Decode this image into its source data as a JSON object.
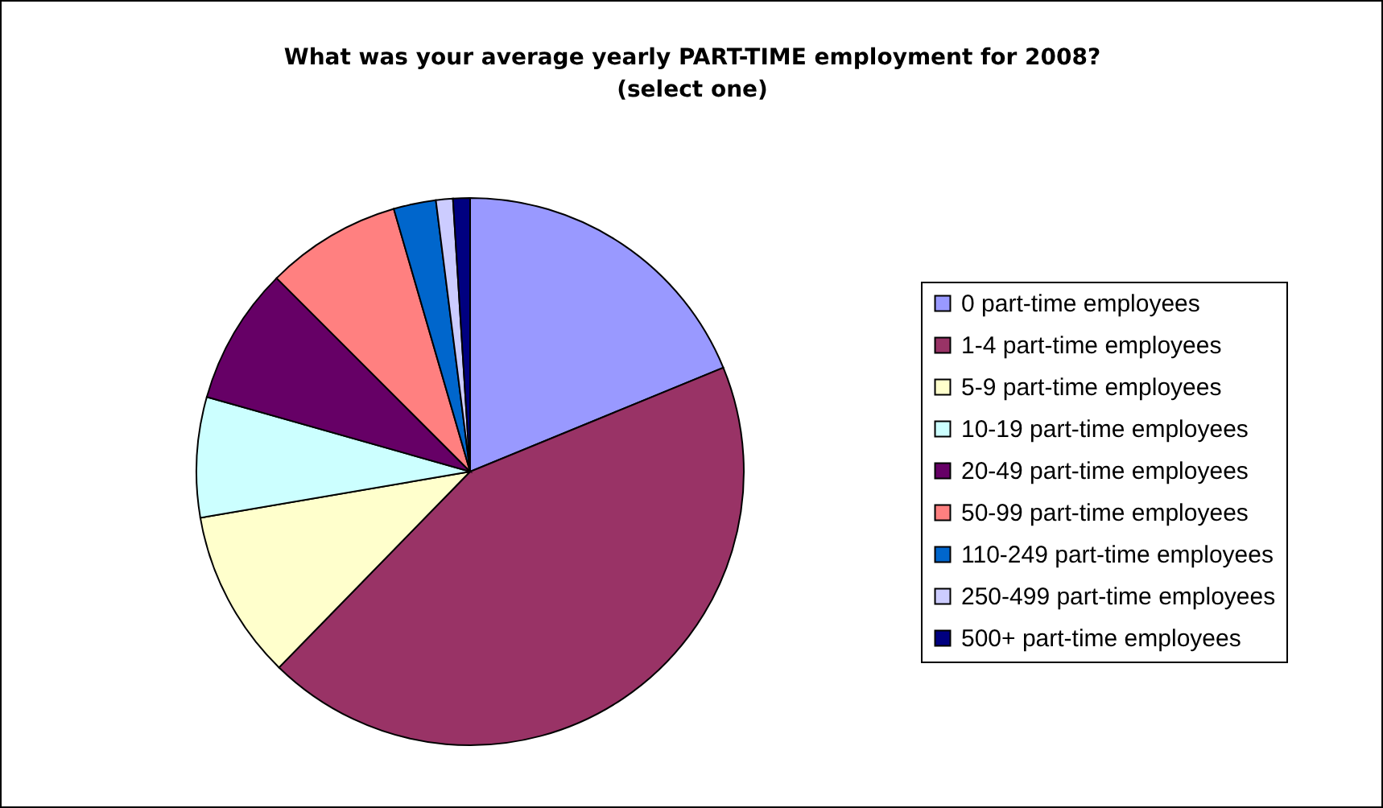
{
  "chart_data": {
    "type": "pie",
    "title": "What was your average yearly PART-TIME employment for 2008?\n(select one)",
    "categories": [
      "0 part-time employees",
      "1-4 part-time employees",
      "5-9 part-time employees",
      "10-19 part-time employees",
      "20-49 part-time employees",
      "50-99 part-time employees",
      "110-249 part-time employees",
      "250-499 part-time employees",
      "500+ part-time employees"
    ],
    "values": [
      18.8,
      43.5,
      10,
      7.1,
      8.1,
      8,
      2.5,
      1,
      1
    ],
    "colors": [
      "#9999ff",
      "#993366",
      "#ffffcc",
      "#ccffff",
      "#660066",
      "#ff8080",
      "#0066cc",
      "#ccccff",
      "#000080"
    ],
    "legend": "right"
  }
}
